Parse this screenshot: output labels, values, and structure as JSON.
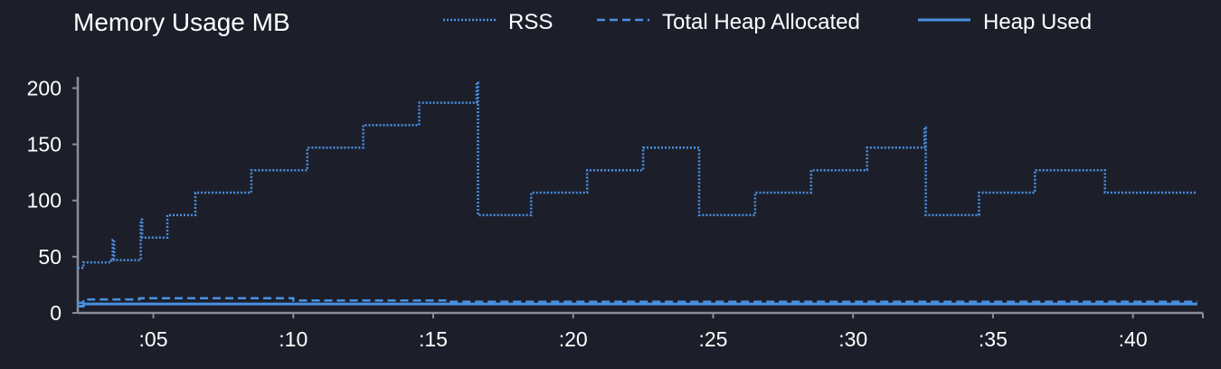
{
  "chart_data": {
    "type": "line",
    "title": "Memory Usage MB",
    "xlabel": "",
    "ylabel": "",
    "x_unit": "seconds",
    "xlim": [
      2.3,
      42.5
    ],
    "ylim": [
      0,
      210
    ],
    "y_ticks": [
      0,
      50,
      100,
      150,
      200
    ],
    "x_ticks": [
      5,
      10,
      15,
      20,
      25,
      30,
      35,
      40
    ],
    "x_tick_labels": [
      ":05",
      ":10",
      ":15",
      ":20",
      ":25",
      ":30",
      ":35",
      ":40"
    ],
    "grid": false,
    "legend_position": "top",
    "series": [
      {
        "name": "RSS",
        "line_style": "dotted",
        "color": "#4a90e2",
        "step": true,
        "x": [
          2.3,
          2.5,
          3.5,
          3.55,
          3.6,
          4.5,
          4.55,
          4.6,
          5.5,
          6.5,
          8.5,
          10.5,
          12.5,
          14.5,
          16.5,
          16.55,
          16.6,
          18.5,
          20.5,
          22.5,
          24.5,
          26.5,
          28.5,
          30.5,
          32.5,
          32.55,
          32.6,
          34.5,
          36.5,
          39.0,
          42.3
        ],
        "y": [
          40,
          45,
          47,
          65,
          47,
          47,
          83,
          67,
          87,
          107,
          127,
          147,
          167,
          187,
          187,
          205,
          87,
          107,
          127,
          147,
          87,
          107,
          127,
          147,
          147,
          165,
          87,
          107,
          127,
          107,
          107
        ]
      },
      {
        "name": "Total Heap Allocated",
        "line_style": "dashed",
        "color": "#4a90e2",
        "step": true,
        "x": [
          2.3,
          2.5,
          3.5,
          4.5,
          9.5,
          10.0,
          14.5,
          15.5,
          42.3
        ],
        "y": [
          9,
          12,
          12,
          13,
          13,
          11,
          11,
          10,
          10
        ]
      },
      {
        "name": "Heap Used",
        "line_style": "solid",
        "color": "#4a90e2",
        "step": true,
        "x": [
          2.3,
          2.5,
          3.5,
          5.0,
          9.5,
          10.0,
          14.0,
          42.3
        ],
        "y": [
          6,
          8,
          8,
          8,
          8,
          8,
          8,
          8
        ]
      }
    ]
  },
  "colors": {
    "background": "#1c1f2a",
    "axis": "#8a8d94",
    "text": "#ffffff",
    "series": "#4a90e2"
  }
}
